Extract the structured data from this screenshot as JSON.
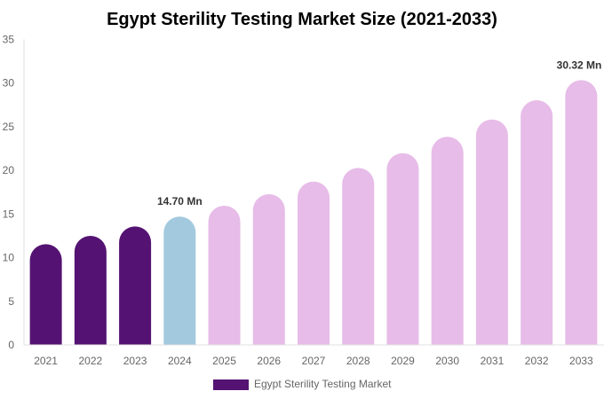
{
  "chart_data": {
    "type": "bar",
    "title": "Egypt Sterility Testing Market Size (2021-2033)",
    "xlabel": "",
    "ylabel": "",
    "categories": [
      "2021",
      "2022",
      "2023",
      "2024",
      "2025",
      "2026",
      "2027",
      "2028",
      "2029",
      "2030",
      "2031",
      "2032",
      "2033"
    ],
    "series": [
      {
        "name": "Egypt Sterility Testing Market",
        "values": [
          11.54,
          12.49,
          13.57,
          14.7,
          15.94,
          17.26,
          18.71,
          20.27,
          21.96,
          23.83,
          25.82,
          28.02,
          30.32
        ]
      }
    ],
    "data_labels": [
      {
        "category": "2024",
        "text": "14.70 Mn"
      },
      {
        "category": "2033",
        "text": "30.32 Mn"
      }
    ],
    "ylim": [
      0,
      35
    ],
    "yticks": [
      0,
      5,
      10,
      15,
      20,
      25,
      30,
      35
    ],
    "grid": false,
    "legend_position": "bottom",
    "colors": {
      "historical": "#541372",
      "base_year": "#a3c9de",
      "forecast": "#e7bce8",
      "legend": "#541372"
    }
  }
}
